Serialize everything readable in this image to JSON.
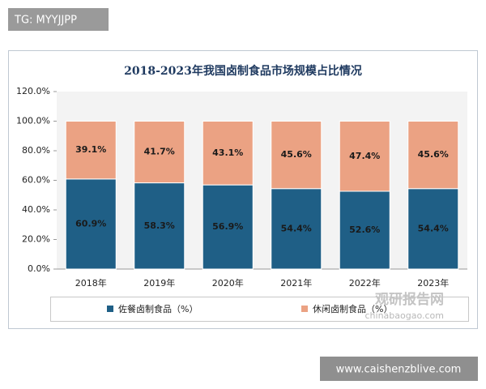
{
  "chart_data": {
    "type": "stacked_bar",
    "title": "2018-2023年我国卤制食品市场规模占比情况",
    "categories": [
      "2018年",
      "2019年",
      "2020年",
      "2021年",
      "2022年",
      "2023年"
    ],
    "series": [
      {
        "name": "佐餐卤制食品（%）",
        "color": "#1f5f86",
        "values": [
          60.9,
          58.3,
          56.9,
          54.4,
          52.6,
          54.4
        ],
        "value_labels": [
          "60.9%",
          "58.3%",
          "56.9%",
          "54.4%",
          "52.6%",
          "54.4%"
        ]
      },
      {
        "name": "休闲卤制食品（%）",
        "color": "#eba283",
        "values": [
          39.1,
          41.7,
          43.1,
          45.6,
          47.4,
          45.6
        ],
        "value_labels": [
          "39.1%",
          "41.7%",
          "43.1%",
          "45.6%",
          "47.4%",
          "45.6%"
        ]
      }
    ],
    "ylim": [
      0,
      120
    ],
    "yticks": [
      {
        "value": 0,
        "label": "0.0%"
      },
      {
        "value": 20,
        "label": "20.0%"
      },
      {
        "value": 40,
        "label": "40.0%"
      },
      {
        "value": 60,
        "label": "60.0%"
      },
      {
        "value": 80,
        "label": "80.0%"
      },
      {
        "value": 100,
        "label": "100.0%"
      },
      {
        "value": 120,
        "label": "120.0%"
      }
    ],
    "grid": false
  },
  "overlay": {
    "tag": "TG: MYYJJPP",
    "watermark": "观研报告网",
    "watermark_url": "chinabaogao.com",
    "site": "www.caishenzblive.com"
  }
}
